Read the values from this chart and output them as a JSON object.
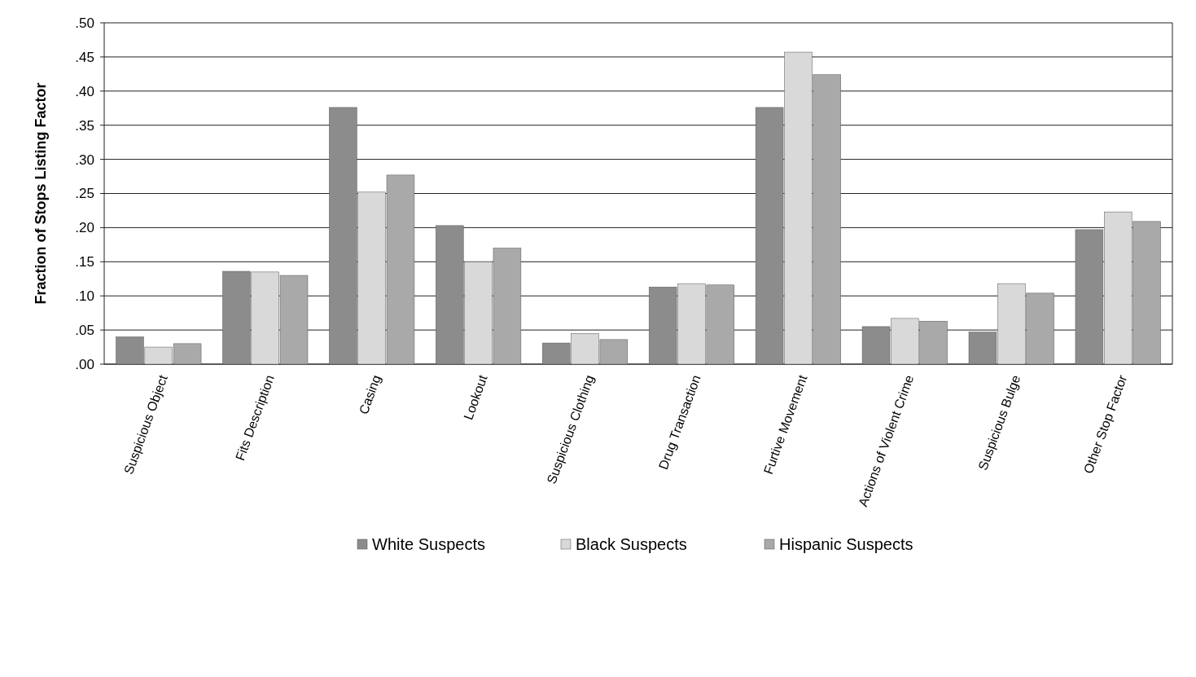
{
  "chart_data": {
    "type": "bar",
    "ylabel": "Fraction of Stops Listing Factor",
    "categories": [
      "Suspicious Object",
      "Fits Description",
      "Casing",
      "Lookout",
      "Suspicious Clothing",
      "Drug Transaction",
      "Furtive Movement",
      "Actions of Violent Crime",
      "Suspicious Bulge",
      "Other Stop Factor"
    ],
    "series": [
      {
        "name": "White Suspects",
        "color": "#8c8c8c",
        "values": [
          0.04,
          0.136,
          0.376,
          0.203,
          0.031,
          0.113,
          0.376,
          0.055,
          0.047,
          0.197
        ]
      },
      {
        "name": "Black Suspects",
        "color": "#d9d9d9",
        "values": [
          0.025,
          0.135,
          0.252,
          0.15,
          0.045,
          0.118,
          0.457,
          0.067,
          0.118,
          0.223
        ]
      },
      {
        "name": "Hispanic Suspects",
        "color": "#a9a9a9",
        "values": [
          0.03,
          0.13,
          0.277,
          0.17,
          0.036,
          0.116,
          0.424,
          0.063,
          0.104,
          0.209
        ]
      }
    ],
    "ylim": [
      0,
      0.5
    ],
    "yticks": [
      {
        "value": 0,
        "label": ".00"
      },
      {
        "value": 0.05,
        "label": ".05"
      },
      {
        "value": 0.1,
        "label": ".10"
      },
      {
        "value": 0.15,
        "label": ".15"
      },
      {
        "value": 0.2,
        "label": ".20"
      },
      {
        "value": 0.25,
        "label": ".25"
      },
      {
        "value": 0.3,
        "label": ".30"
      },
      {
        "value": 0.35,
        "label": ".35"
      },
      {
        "value": 0.4,
        "label": ".40"
      },
      {
        "value": 0.45,
        "label": ".45"
      },
      {
        "value": 0.5,
        "label": ".50"
      }
    ],
    "grid": "y",
    "legend": "bottom"
  }
}
